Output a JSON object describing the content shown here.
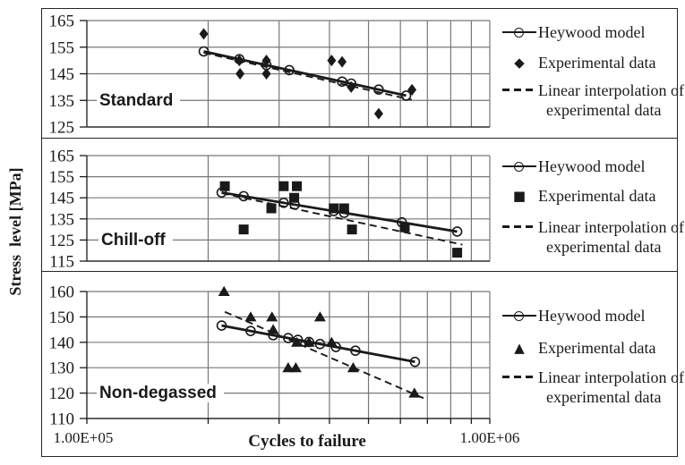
{
  "figure": {
    "y_axis_title": "Stress  level [MPa]",
    "x_axis_title": "Cycles to failure",
    "x_tick_labels": [
      "1.00E+05",
      "1.00E+06"
    ]
  },
  "legend": {
    "heywood": "Heywood model",
    "experimental": "Experimental data",
    "interp_line1": "Linear interpolation of",
    "interp_line2": "experimental data"
  },
  "colors": {
    "ink": "#1a1a1a",
    "grid": "#787878"
  },
  "chart_data": [
    {
      "type": "line+scatter",
      "panel_label": "Standard",
      "marker": "diamond",
      "marker_glyph": "◆",
      "x_scale": "log",
      "xlim": [
        100000,
        1000000
      ],
      "ylim": [
        125,
        165
      ],
      "yticks": [
        165,
        155,
        145,
        135,
        125
      ],
      "series": {
        "heywood_model": {
          "style": "solid line with open circle markers",
          "start": [
            195000,
            153.4
          ],
          "end": [
            620000,
            136.8
          ],
          "points_x": [
            195000,
            239000,
            279000,
            318000,
            430000,
            453000,
            530000,
            620000
          ]
        },
        "experimental_data": [
          [
            195000,
            160
          ],
          [
            239000,
            150
          ],
          [
            240000,
            145
          ],
          [
            279000,
            150
          ],
          [
            279000,
            145
          ],
          [
            405000,
            150
          ],
          [
            430000,
            149.5
          ],
          [
            453000,
            140
          ],
          [
            530000,
            130
          ],
          [
            641000,
            139
          ]
        ],
        "linear_interpolation": {
          "style": "dashed line",
          "start": [
            195000,
            152.9
          ],
          "end": [
            640000,
            135.2
          ]
        }
      }
    },
    {
      "type": "line+scatter",
      "panel_label": "Chill-off",
      "marker": "square",
      "marker_glyph": "■",
      "x_scale": "log",
      "xlim": [
        100000,
        1000000
      ],
      "ylim": [
        115,
        165
      ],
      "yticks": [
        165,
        155,
        145,
        135,
        125,
        115
      ],
      "series": {
        "heywood_model": {
          "style": "solid line with open circle markers",
          "start": [
            216000,
            147.5
          ],
          "end": [
            830000,
            129
          ],
          "points_x": [
            216000,
            245000,
            308000,
            328000,
            410000,
            435000,
            605000,
            830000
          ]
        },
        "experimental_data": [
          [
            220000,
            150.5
          ],
          [
            245000,
            130
          ],
          [
            287000,
            140
          ],
          [
            308000,
            150.5
          ],
          [
            332000,
            150.5
          ],
          [
            327000,
            145
          ],
          [
            410000,
            140
          ],
          [
            435000,
            140
          ],
          [
            455000,
            130
          ],
          [
            615000,
            131
          ],
          [
            830000,
            119
          ]
        ],
        "linear_interpolation": {
          "style": "dashed line",
          "start": [
            216000,
            147.2
          ],
          "end": [
            855000,
            122.8
          ]
        }
      }
    },
    {
      "type": "line+scatter",
      "panel_label": "Non-degassed",
      "marker": "triangle",
      "marker_glyph": "▲",
      "x_scale": "log",
      "xlim": [
        100000,
        1000000
      ],
      "ylim": [
        110,
        160
      ],
      "yticks": [
        160,
        150,
        140,
        130,
        120,
        110
      ],
      "series": {
        "heywood_model": {
          "style": "solid line with open circle markers",
          "start": [
            216000,
            146.6
          ],
          "end": [
            652000,
            132.3
          ],
          "points_x": [
            216000,
            255000,
            290000,
            316000,
            334000,
            356000,
            379000,
            415000,
            464000,
            652000
          ]
        },
        "experimental_data": [
          [
            219000,
            160
          ],
          [
            255000,
            150
          ],
          [
            288000,
            150
          ],
          [
            290000,
            145
          ],
          [
            316000,
            130
          ],
          [
            330000,
            130
          ],
          [
            332000,
            140
          ],
          [
            356000,
            140
          ],
          [
            379000,
            150
          ],
          [
            405000,
            140
          ],
          [
            458000,
            130
          ],
          [
            650000,
            120
          ]
        ],
        "linear_interpolation": {
          "style": "dashed line",
          "start": [
            220000,
            152
          ],
          "end": [
            685000,
            118
          ]
        }
      }
    }
  ]
}
